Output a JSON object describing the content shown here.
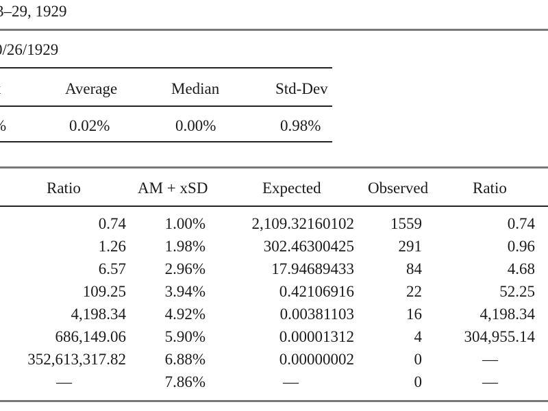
{
  "header": {
    "date_range": "3–29, 1929"
  },
  "stats_table": {
    "date_label": "0/26/1929",
    "headers": [
      "x",
      "Average",
      "Median",
      "Std-Dev"
    ],
    "values": [
      "%",
      "0.02%",
      "0.00%",
      "0.98%"
    ]
  },
  "main_table": {
    "headers": [
      "Ratio",
      "AM + xSD",
      "Expected",
      "Observed",
      "Ratio"
    ],
    "rows": [
      [
        "0.74",
        "1.00%",
        "2,109.32160102",
        "1559",
        "0.74"
      ],
      [
        "1.26",
        "1.98%",
        "302.46300425",
        "291",
        "0.96"
      ],
      [
        "6.57",
        "2.96%",
        "17.94689433",
        "84",
        "4.68"
      ],
      [
        "109.25",
        "3.94%",
        "0.42106916",
        "22",
        "52.25"
      ],
      [
        "4,198.34",
        "4.92%",
        "0.00381103",
        "16",
        "4,198.34"
      ],
      [
        "686,149.06",
        "5.90%",
        "0.00001312",
        "4",
        "304,955.14"
      ],
      [
        "352,613,317.82",
        "6.88%",
        "0.00000002",
        "0",
        "—"
      ],
      [
        "—",
        "7.86%",
        "—",
        "0",
        "—"
      ]
    ]
  }
}
